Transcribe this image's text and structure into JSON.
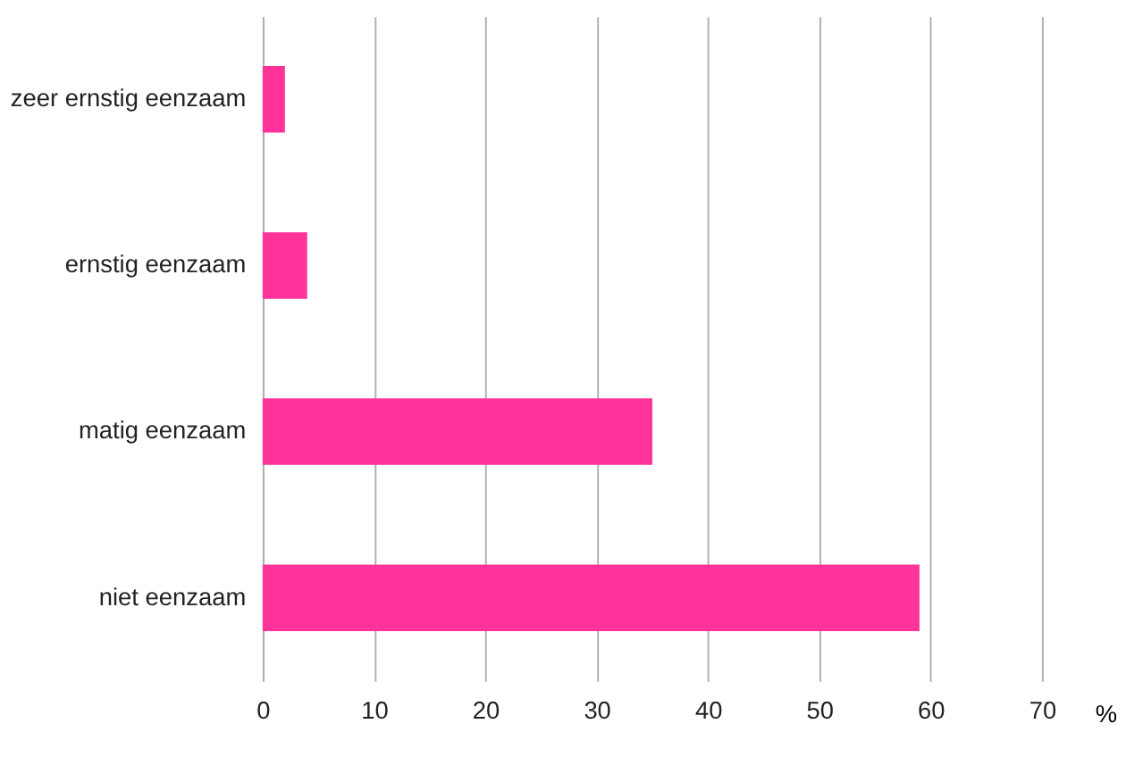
{
  "chart_data": {
    "type": "bar",
    "orientation": "horizontal",
    "xlabel": "%",
    "categories": [
      "zeer ernstig eenzaam",
      "ernstig eenzaam",
      "matig eenzaam",
      "niet eenzaam"
    ],
    "values": [
      2,
      4,
      35,
      59
    ],
    "color": "#ff3399",
    "xlim": [
      0,
      70
    ],
    "xticks": [
      0,
      10,
      20,
      30,
      40,
      50,
      60,
      70
    ],
    "grid": "x"
  }
}
